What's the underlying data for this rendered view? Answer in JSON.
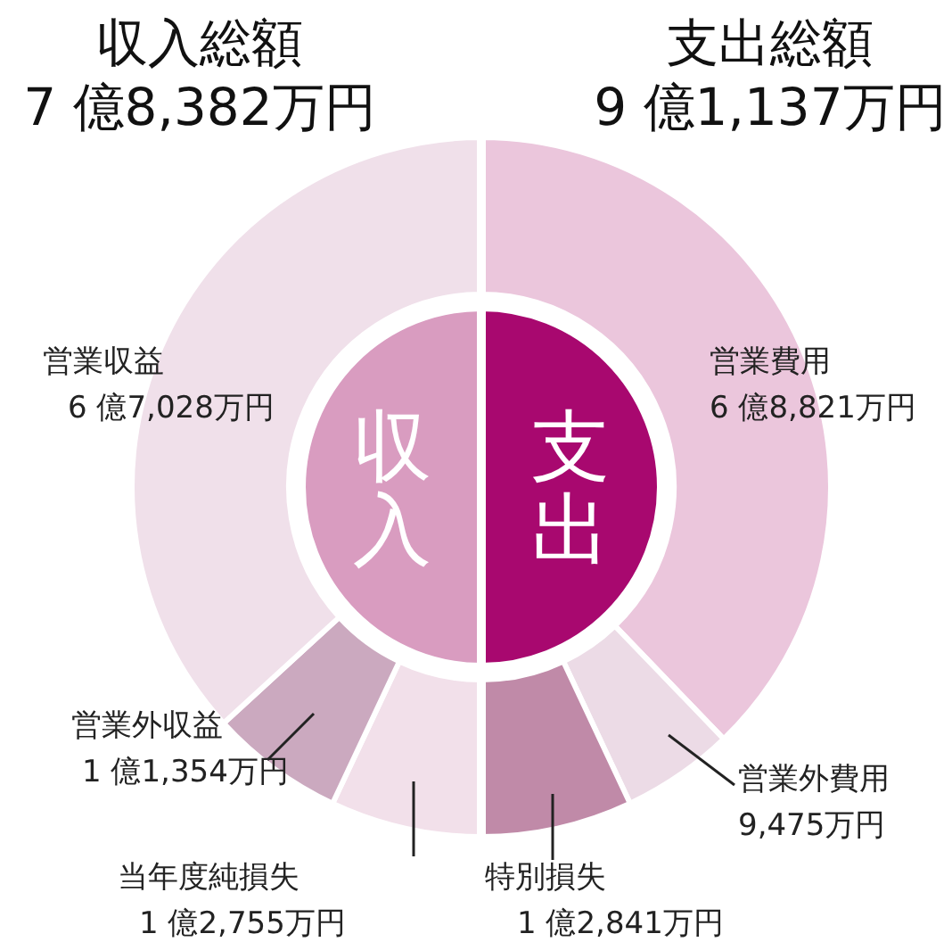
{
  "chart_data": [
    {
      "type": "donut",
      "categories": [
        "営業費用",
        "営業外費用",
        "特別損失",
        "当年度純損失",
        "営業外収益",
        "営業収益"
      ],
      "values": [
        37.8,
        5.2,
        7.0,
        7.0,
        6.2,
        36.8
      ],
      "colors": [
        "#ebc6dc",
        "#ecdbe6",
        "#c08aa8",
        "#f2e0ea",
        "#cba9bf",
        "#f0e0ea"
      ],
      "annotations": [
        "6 億8,821万円",
        "9,475万円",
        "1 億2,841万円",
        "1 億2,755万円",
        "1 億1,354万円",
        "6 億7,028万円"
      ]
    },
    {
      "type": "pie",
      "categories": [
        "支出",
        "収入"
      ],
      "values": [
        50,
        50
      ],
      "colors": [
        "#a8086f",
        "#d99cc0"
      ],
      "annotations": [
        "収入総額",
        "7 億8,382万円",
        "支出総額",
        "9 億1,137万円"
      ]
    }
  ]
}
